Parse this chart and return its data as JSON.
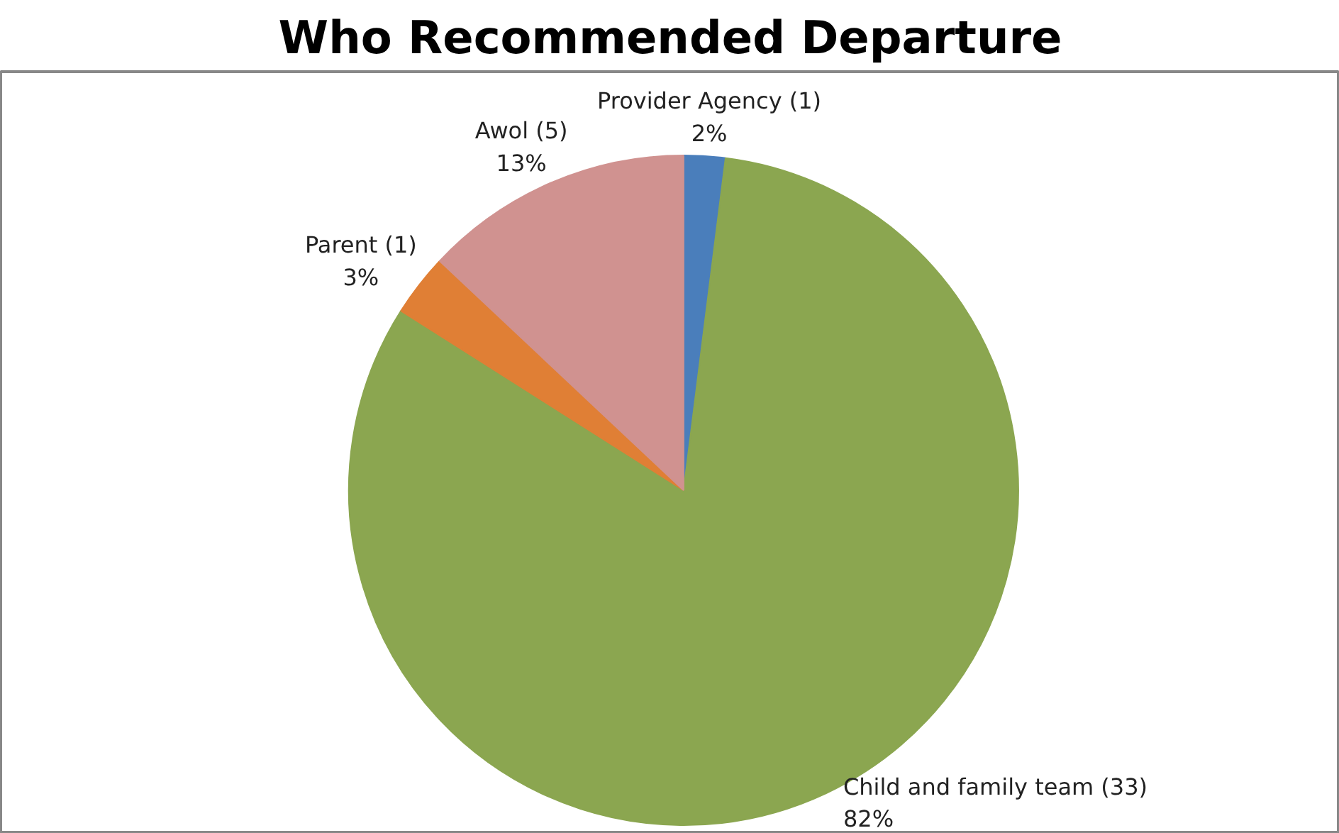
{
  "chart_data": {
    "type": "pie",
    "title": "Who Recommended Departure",
    "categories": [
      "Provider Agency (1)",
      "Child and family team (33)",
      "Parent (1)",
      "Awol (5)"
    ],
    "values": [
      2,
      82,
      3,
      13
    ],
    "value_labels": [
      "2%",
      "82%",
      "3%",
      "13%"
    ],
    "colors": [
      "#4a7ebb",
      "#8ba650",
      "#e07f35",
      "#d09290"
    ],
    "legend": false
  }
}
